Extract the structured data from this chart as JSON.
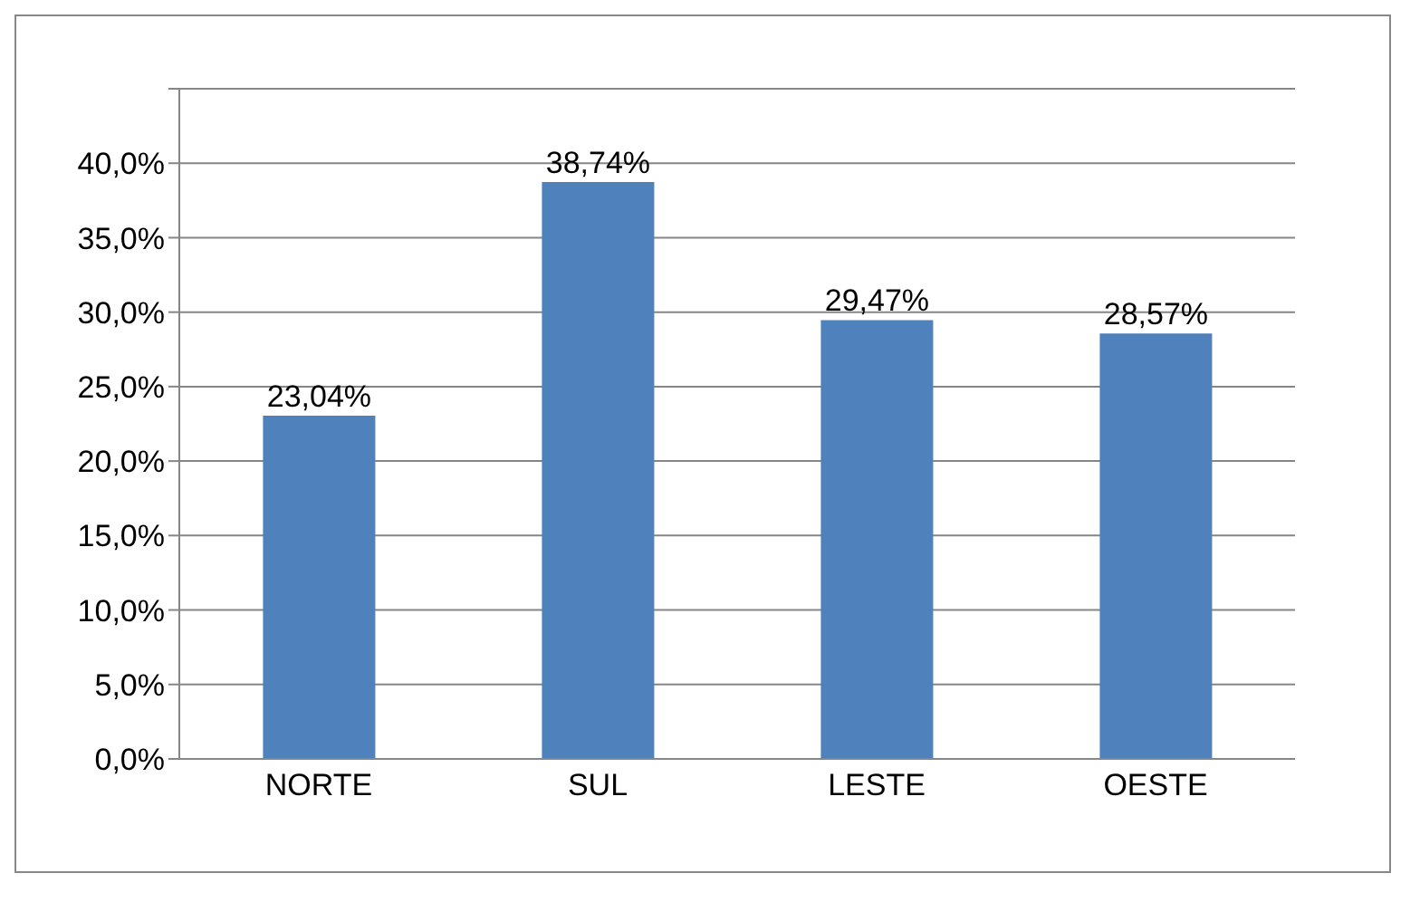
{
  "chart_data": {
    "type": "bar",
    "categories": [
      "NORTE",
      "SUL",
      "LESTE",
      "OESTE"
    ],
    "values": [
      23.04,
      38.74,
      29.47,
      28.57
    ],
    "value_labels": [
      "23,04%",
      "38,74%",
      "29,47%",
      "28,57%"
    ],
    "color": "#4f81bd",
    "ylim": [
      0,
      45
    ],
    "yticks": [
      {
        "value": 0,
        "label": "0,0%"
      },
      {
        "value": 5,
        "label": "5,0%"
      },
      {
        "value": 10,
        "label": "10,0%"
      },
      {
        "value": 15,
        "label": "15,0%"
      },
      {
        "value": 20,
        "label": "20,0%"
      },
      {
        "value": 25,
        "label": "25,0%"
      },
      {
        "value": 30,
        "label": "30,0%"
      },
      {
        "value": 35,
        "label": "35,0%"
      },
      {
        "value": 40,
        "label": "40,0%"
      },
      {
        "value": 45,
        "label": null
      }
    ],
    "grid": "y"
  }
}
